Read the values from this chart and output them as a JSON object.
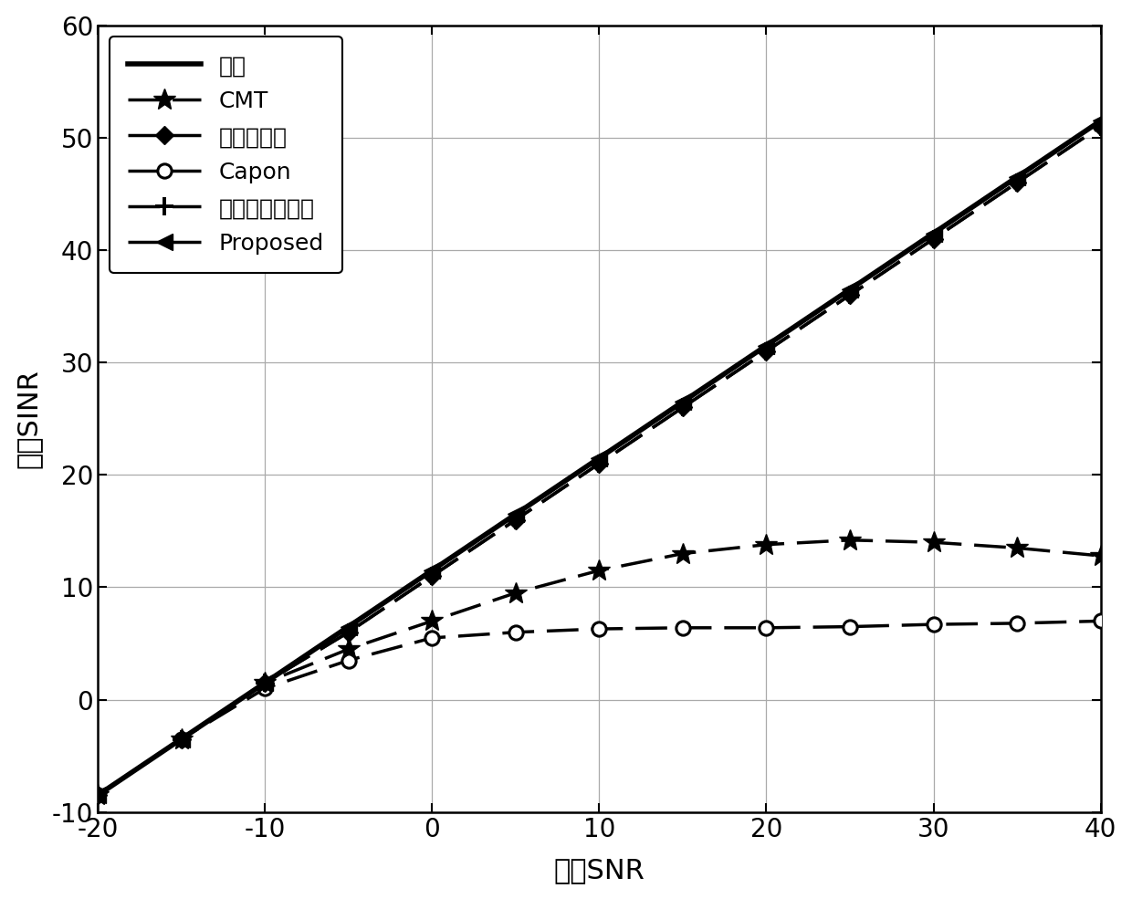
{
  "title": "",
  "xlabel": "输入SNR",
  "ylabel": "输出SINR",
  "xlim": [
    -20,
    40
  ],
  "ylim": [
    -10,
    60
  ],
  "xticks": [
    -20,
    -10,
    0,
    10,
    20,
    30,
    40
  ],
  "yticks": [
    -10,
    0,
    10,
    20,
    30,
    40,
    50,
    60
  ],
  "snr_values": [
    -20,
    -15,
    -10,
    -5,
    0,
    5,
    10,
    15,
    20,
    25,
    30,
    35,
    40
  ],
  "ideal": [
    -8.5,
    -3.5,
    1.5,
    6.5,
    11.5,
    16.5,
    21.5,
    26.5,
    31.5,
    36.5,
    41.5,
    46.5,
    51.5
  ],
  "proposed": [
    -8.5,
    -3.5,
    1.5,
    6.5,
    11.5,
    16.5,
    21.5,
    26.5,
    31.5,
    36.5,
    41.5,
    46.5,
    51.5
  ],
  "cmt": [
    -8.5,
    -3.5,
    1.5,
    4.5,
    7.0,
    9.5,
    11.5,
    13.0,
    13.8,
    14.2,
    14.0,
    13.5,
    12.8
  ],
  "multi_param": [
    -8.5,
    -3.5,
    1.5,
    6.0,
    11.0,
    16.0,
    21.0,
    26.0,
    31.0,
    36.0,
    41.0,
    46.0,
    51.0
  ],
  "capon": [
    -8.5,
    -3.5,
    1.0,
    3.5,
    5.5,
    6.0,
    6.3,
    6.4,
    6.4,
    6.5,
    6.7,
    6.8,
    7.0
  ],
  "covariance": [
    -8.5,
    -3.5,
    1.5,
    6.0,
    11.0,
    16.0,
    21.0,
    26.0,
    31.0,
    36.0,
    41.0,
    46.0,
    51.0
  ],
  "line_color": "#000000",
  "legend_labels": [
    "理想",
    "CMT",
    "多参数约束",
    "Capon",
    "协方差矩阵重构",
    "Proposed"
  ],
  "background_color": "#ffffff",
  "grid_color": "#aaaaaa",
  "xlabel_fontsize": 22,
  "ylabel_fontsize": 22,
  "tick_fontsize": 20,
  "legend_fontsize": 18
}
